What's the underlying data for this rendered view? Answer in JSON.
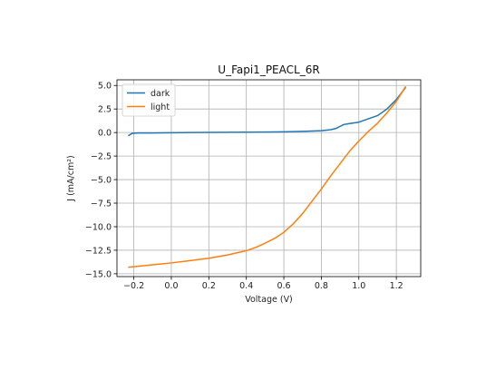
{
  "chart_data": {
    "type": "line",
    "title": "U_Fapi1_PEACL_6R",
    "xlabel": "Voltage (V)",
    "ylabel": "J (mA/cm²)",
    "xlim": [
      -0.29,
      1.33
    ],
    "ylim": [
      -15.3,
      5.6
    ],
    "xticks": [
      -0.2,
      0.0,
      0.2,
      0.4,
      0.6,
      0.8,
      1.0,
      1.2
    ],
    "xtick_labels": [
      "−0.2",
      "0.0",
      "0.2",
      "0.4",
      "0.6",
      "0.8",
      "1.0",
      "1.2"
    ],
    "yticks": [
      -15.0,
      -12.5,
      -10.0,
      -7.5,
      -5.0,
      -2.5,
      0.0,
      2.5,
      5.0
    ],
    "ytick_labels": [
      "−15.0",
      "−12.5",
      "−10.0",
      "−7.5",
      "−5.0",
      "−2.5",
      "0.0",
      "2.5",
      "5.0"
    ],
    "grid": true,
    "legend_position": "upper-left",
    "series": [
      {
        "name": "dark",
        "color": "#1f77b4",
        "x": [
          -0.23,
          -0.21,
          -0.18,
          -0.1,
          0.0,
          0.1,
          0.2,
          0.3,
          0.4,
          0.5,
          0.6,
          0.7,
          0.8,
          0.85,
          0.88,
          0.9,
          0.92,
          0.95,
          1.0,
          1.05,
          1.1,
          1.15,
          1.2,
          1.25
        ],
        "y": [
          -0.35,
          -0.1,
          -0.05,
          -0.05,
          -0.02,
          0.0,
          0.02,
          0.03,
          0.04,
          0.05,
          0.07,
          0.12,
          0.2,
          0.3,
          0.45,
          0.65,
          0.85,
          0.95,
          1.1,
          1.45,
          1.8,
          2.5,
          3.5,
          4.8
        ]
      },
      {
        "name": "light",
        "color": "#ff7f0e",
        "x": [
          -0.23,
          -0.2,
          -0.1,
          0.0,
          0.1,
          0.2,
          0.3,
          0.4,
          0.45,
          0.5,
          0.55,
          0.6,
          0.65,
          0.7,
          0.75,
          0.8,
          0.85,
          0.9,
          0.95,
          1.0,
          1.05,
          1.1,
          1.15,
          1.2,
          1.25
        ],
        "y": [
          -14.3,
          -14.25,
          -14.05,
          -13.85,
          -13.6,
          -13.35,
          -13.0,
          -12.55,
          -12.2,
          -11.75,
          -11.25,
          -10.6,
          -9.7,
          -8.6,
          -7.3,
          -6.0,
          -4.6,
          -3.3,
          -2.0,
          -0.9,
          0.1,
          1.0,
          2.1,
          3.3,
          4.9
        ]
      }
    ]
  }
}
